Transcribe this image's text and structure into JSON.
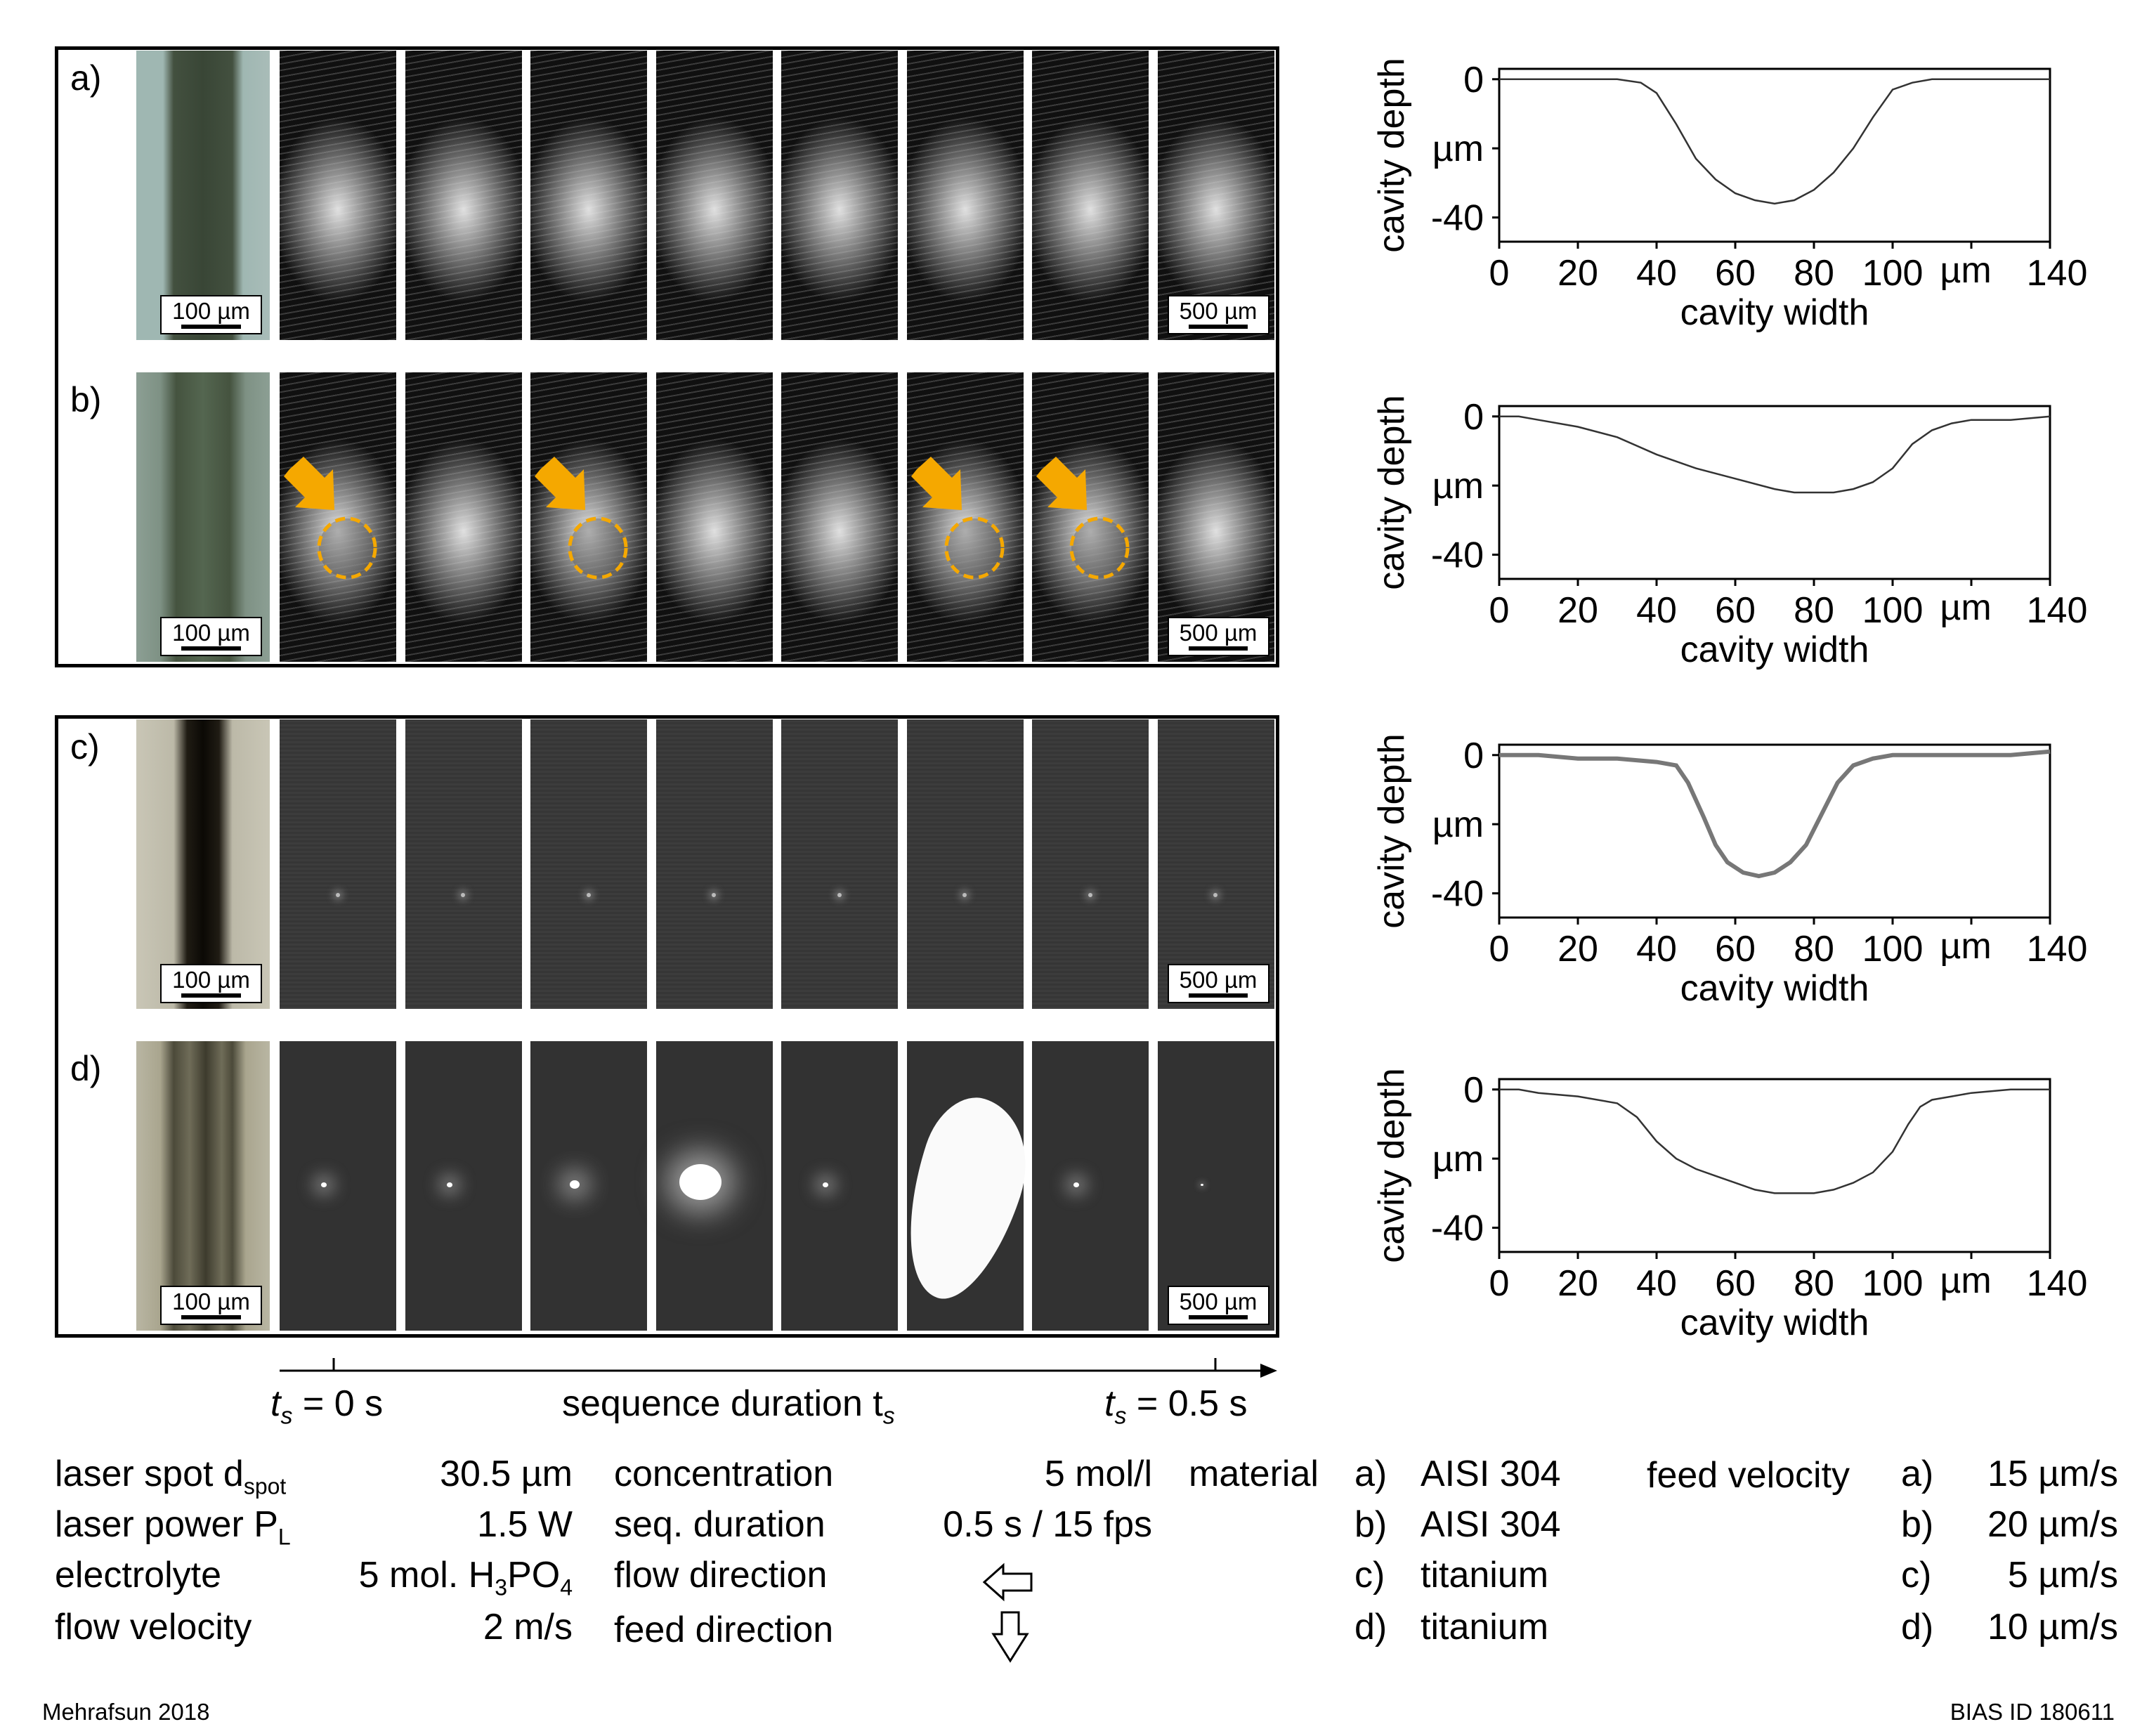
{
  "rows": [
    {
      "id": "a",
      "label": "a)",
      "scale_left": "100 µm",
      "scale_right": "500 µm",
      "style": "bright"
    },
    {
      "id": "b",
      "label": "b)",
      "scale_left": "100 µm",
      "scale_right": "500 µm",
      "style": "bright-arrows"
    },
    {
      "id": "c",
      "label": "c)",
      "scale_left": "100 µm",
      "scale_right": "500 µm",
      "style": "dark"
    },
    {
      "id": "d",
      "label": "d)",
      "scale_left": "100 µm",
      "scale_right": "500 µm",
      "style": "spots"
    }
  ],
  "timeline": {
    "start_label": "t",
    "start_sub": "s",
    "start_value": " = 0 s",
    "center_label": "sequence duration t",
    "center_sub": "s",
    "end_label": "t",
    "end_sub": "s",
    "end_value": " = 0.5 s"
  },
  "chart_data": [
    {
      "type": "line",
      "row": "a",
      "xlabel": "cavity width",
      "ylabel": "cavity depth",
      "y_unit": "µm",
      "x_unit": "µm",
      "xticks": [
        "0",
        "20",
        "40",
        "60",
        "80",
        "100",
        "140"
      ],
      "yticks": [
        "0",
        "-40"
      ],
      "xlim": [
        0,
        140
      ],
      "ylim": [
        -47,
        3
      ],
      "x": [
        0,
        10,
        20,
        30,
        36,
        40,
        45,
        50,
        55,
        60,
        65,
        70,
        75,
        80,
        85,
        90,
        95,
        100,
        105,
        110,
        120,
        130,
        140
      ],
      "y": [
        0,
        0,
        0,
        0,
        -1,
        -4,
        -13,
        -23,
        -29,
        -33,
        -35,
        -36,
        -35,
        -32,
        -27,
        -20,
        -11,
        -3,
        -1,
        0,
        0,
        0,
        0
      ]
    },
    {
      "type": "line",
      "row": "b",
      "xlabel": "cavity width",
      "ylabel": "cavity depth",
      "y_unit": "µm",
      "x_unit": "µm",
      "xticks": [
        "0",
        "20",
        "40",
        "60",
        "80",
        "100",
        "140"
      ],
      "yticks": [
        "0",
        "-40"
      ],
      "xlim": [
        0,
        140
      ],
      "ylim": [
        -47,
        3
      ],
      "x": [
        0,
        5,
        10,
        20,
        30,
        40,
        50,
        60,
        70,
        75,
        80,
        85,
        90,
        95,
        100,
        105,
        110,
        115,
        120,
        130,
        140
      ],
      "y": [
        0,
        0,
        -1,
        -3,
        -6,
        -11,
        -15,
        -18,
        -21,
        -22,
        -22,
        -22,
        -21,
        -19,
        -15,
        -8,
        -4,
        -2,
        -1,
        -1,
        0
      ]
    },
    {
      "type": "line",
      "row": "c",
      "xlabel": "cavity width",
      "ylabel": "cavity depth",
      "y_unit": "µm",
      "x_unit": "µm",
      "xticks": [
        "0",
        "20",
        "40",
        "60",
        "80",
        "100",
        "140"
      ],
      "yticks": [
        "0",
        "-40"
      ],
      "xlim": [
        0,
        140
      ],
      "ylim": [
        -47,
        3
      ],
      "x": [
        0,
        10,
        20,
        30,
        40,
        45,
        48,
        52,
        55,
        58,
        62,
        66,
        70,
        74,
        78,
        82,
        86,
        90,
        95,
        100,
        110,
        120,
        130,
        140
      ],
      "y": [
        0,
        0,
        -1,
        -1,
        -2,
        -3,
        -8,
        -18,
        -26,
        -31,
        -34,
        -35,
        -34,
        -31,
        -26,
        -17,
        -8,
        -3,
        -1,
        0,
        0,
        0,
        0,
        1
      ]
    },
    {
      "type": "line",
      "row": "d",
      "xlabel": "cavity width",
      "ylabel": "cavity depth",
      "y_unit": "µm",
      "x_unit": "µm",
      "xticks": [
        "0",
        "20",
        "40",
        "60",
        "80",
        "100",
        "140"
      ],
      "yticks": [
        "0",
        "-40"
      ],
      "xlim": [
        0,
        140
      ],
      "ylim": [
        -47,
        3
      ],
      "x": [
        0,
        5,
        10,
        20,
        30,
        35,
        40,
        45,
        50,
        55,
        60,
        65,
        70,
        75,
        80,
        85,
        90,
        95,
        100,
        104,
        107,
        110,
        115,
        120,
        130,
        140
      ],
      "y": [
        0,
        0,
        -1,
        -2,
        -4,
        -8,
        -15,
        -20,
        -23,
        -25,
        -27,
        -29,
        -30,
        -30,
        -30,
        -29,
        -27,
        -24,
        -18,
        -10,
        -5,
        -3,
        -2,
        -1,
        0,
        0
      ]
    }
  ],
  "params": {
    "col1": [
      {
        "label": "laser spot d",
        "sub": "spot",
        "value": "30.5 µm"
      },
      {
        "label": "laser power P",
        "sub": "L",
        "value": "1.5 W"
      },
      {
        "label": "electrolyte",
        "sub": "",
        "value_pre": "5 mol. H",
        "value_s1": "3",
        "value_mid": "PO",
        "value_s2": "4"
      },
      {
        "label": "flow velocity",
        "sub": "",
        "value": "2 m/s"
      }
    ],
    "col2": [
      {
        "label": "concentration",
        "value": "5 mol/l"
      },
      {
        "label": "seq. duration",
        "value": "0.5 s / 15 fps"
      },
      {
        "label": "flow direction",
        "value": ""
      },
      {
        "label": "feed direction",
        "value": ""
      }
    ],
    "material_label": "material",
    "materials": [
      {
        "key": "a)",
        "value": "AISI 304"
      },
      {
        "key": "b)",
        "value": "AISI 304"
      },
      {
        "key": "c)",
        "value": "titanium"
      },
      {
        "key": "d)",
        "value": "titanium"
      }
    ],
    "feed_label": "feed velocity",
    "feeds": [
      {
        "key": "a)",
        "value": "15 µm/s"
      },
      {
        "key": "b)",
        "value": "20 µm/s"
      },
      {
        "key": "c)",
        "value": "5 µm/s"
      },
      {
        "key": "d)",
        "value": "10 µm/s"
      }
    ]
  },
  "footer": {
    "left": "Mehrafsun 2018",
    "right": "BIAS ID 180611"
  },
  "colors": {
    "arrow": "#f5a800",
    "frame_bright": "#1a1a1a",
    "frame_dark": "#3a3a3a"
  }
}
